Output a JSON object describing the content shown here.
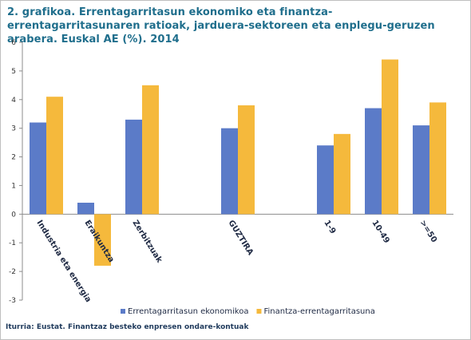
{
  "title": "2. grafikoa. Errentagarritasun ekonomiko eta finantza-errentagarritasunaren ratioak, jarduera-sektoreen eta enplegu-geruzen arabera. Euskal AE (%). 2014",
  "source": "Iturria: Eustat. Finantzaz besteko enpresen ondare-kontuak",
  "chart_data": {
    "type": "bar",
    "categories": [
      "Industria eta energia",
      "Eraikuntza",
      "Zerbitzuak",
      "",
      "GUZTIRA",
      "",
      "1-9",
      "10-49",
      ">=50"
    ],
    "series": [
      {
        "name": "Errentagarritasun ekonomikoa",
        "color": "#5b7bc8",
        "values": [
          3.2,
          0.4,
          3.3,
          null,
          3.0,
          null,
          2.4,
          3.7,
          3.1
        ]
      },
      {
        "name": "Finantza-errentagarritasuna",
        "color": "#f5b93c",
        "values": [
          4.1,
          -1.8,
          4.5,
          null,
          3.8,
          null,
          2.8,
          5.4,
          3.9
        ]
      }
    ],
    "ylim": [
      -3,
      6
    ],
    "yticks": [
      -3,
      -2,
      -1,
      0,
      1,
      2,
      3,
      4,
      5,
      6
    ],
    "xlabel": "",
    "ylabel": "",
    "legend": "bottom",
    "grid": false
  }
}
